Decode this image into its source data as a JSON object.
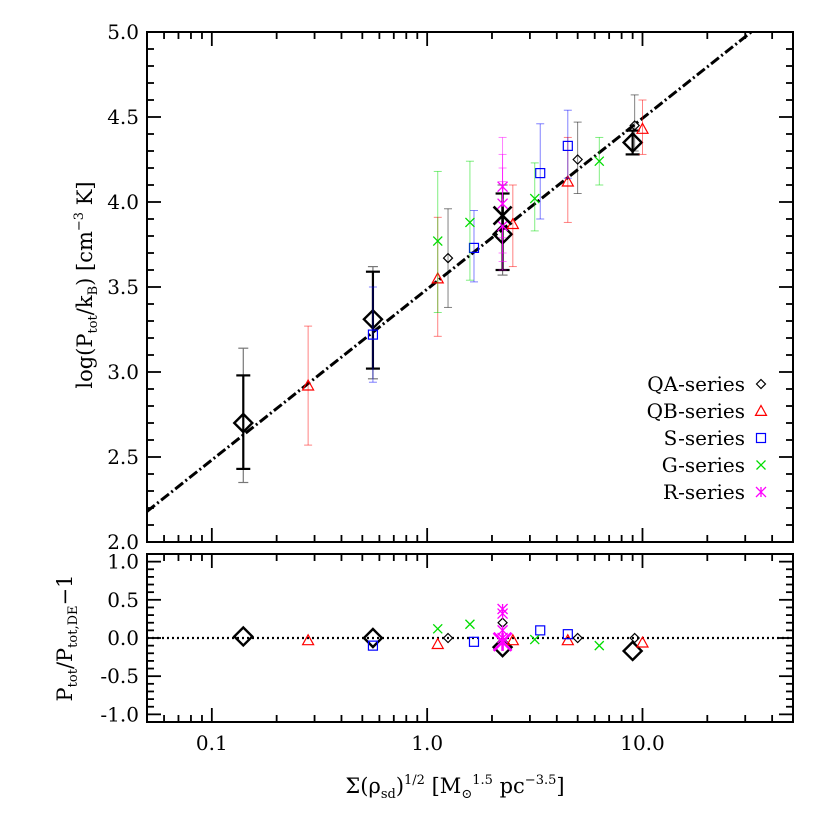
{
  "chart_data": [
    {
      "type": "scatter",
      "panel": "top",
      "xscale": "log",
      "xlim": [
        0.05,
        50
      ],
      "ylim": [
        2.0,
        5.0
      ],
      "yticks": [
        2.0,
        2.5,
        3.0,
        3.5,
        4.0,
        4.5,
        5.0
      ],
      "ytick_labels": [
        "2.0",
        "2.5",
        "3.0",
        "3.5",
        "4.0",
        "4.5",
        "5.0"
      ],
      "ylabel": {
        "main": "log(P",
        "sub1": "tot",
        "mid": "/k",
        "sub2": "B",
        "end": ") [cm",
        "sup": "−3",
        "tail": " K]"
      },
      "legend_position": "lower-right",
      "fit_line": {
        "style": "dash-dot",
        "color": "#000000",
        "x": [
          0.05,
          32
        ],
        "y": [
          2.18,
          5.0
        ]
      },
      "series": [
        {
          "name": "QA-series",
          "marker": "diamond",
          "color": "#000000",
          "points": [
            {
              "x": 1.25,
              "y": 3.67,
              "lo": 3.38,
              "hi": 3.96
            },
            {
              "x": 5.0,
              "y": 4.25,
              "lo": 4.05,
              "hi": 4.47
            },
            {
              "x": 9.2,
              "y": 4.45,
              "lo": 4.3,
              "hi": 4.63
            }
          ]
        },
        {
          "name": "QA-series-large",
          "marker": "diamond-large",
          "color": "#000000",
          "points": [
            {
              "x": 0.14,
              "y": 2.7,
              "lo": 2.43,
              "hi": 2.98,
              "lo_outer": 2.35,
              "hi_outer": 3.14
            },
            {
              "x": 0.56,
              "y": 3.31,
              "lo": 3.02,
              "hi": 3.59,
              "lo_outer": 2.96,
              "hi_outer": 3.62
            },
            {
              "x": 2.24,
              "y": 3.81,
              "lo": 3.6,
              "hi": 4.05,
              "lo_outer": 3.57,
              "hi_outer": 4.1
            },
            {
              "x": 9.0,
              "y": 4.35,
              "lo": 4.28,
              "hi": 4.42
            }
          ]
        },
        {
          "name": "QB-series",
          "marker": "triangle",
          "color": "#ff0000",
          "points": [
            {
              "x": 0.28,
              "y": 2.92,
              "lo": 2.57,
              "hi": 3.27
            },
            {
              "x": 1.12,
              "y": 3.55,
              "lo": 3.21,
              "hi": 3.91
            },
            {
              "x": 2.5,
              "y": 3.87,
              "lo": 3.62,
              "hi": 4.1
            },
            {
              "x": 4.5,
              "y": 4.12,
              "lo": 3.88,
              "hi": 4.38
            },
            {
              "x": 10.0,
              "y": 4.43,
              "lo": 4.28,
              "hi": 4.6
            }
          ]
        },
        {
          "name": "S-series",
          "marker": "square",
          "color": "#0000ff",
          "points": [
            {
              "x": 0.56,
              "y": 3.22,
              "lo": 2.94,
              "hi": 3.5
            },
            {
              "x": 1.65,
              "y": 3.73,
              "lo": 3.53,
              "hi": 3.95
            },
            {
              "x": 3.35,
              "y": 4.17,
              "lo": 3.9,
              "hi": 4.46
            },
            {
              "x": 4.5,
              "y": 4.33,
              "lo": 4.14,
              "hi": 4.54
            }
          ]
        },
        {
          "name": "G-series",
          "marker": "x",
          "color": "#00dd00",
          "points": [
            {
              "x": 1.12,
              "y": 3.77,
              "lo": 3.35,
              "hi": 4.18
            },
            {
              "x": 1.58,
              "y": 3.88,
              "lo": 3.54,
              "hi": 4.24
            },
            {
              "x": 3.16,
              "y": 4.02,
              "lo": 3.83,
              "hi": 4.23
            },
            {
              "x": 6.3,
              "y": 4.24,
              "lo": 4.1,
              "hi": 4.38
            }
          ]
        },
        {
          "name": "R-series",
          "marker": "asterisk",
          "color": "#ff00ff",
          "points": [
            {
              "x": 2.24,
              "y": 3.92,
              "lo": 3.65,
              "hi": 4.2
            },
            {
              "x": 2.24,
              "y": 3.99,
              "lo": 3.7,
              "hi": 4.28
            },
            {
              "x": 2.24,
              "y": 4.09,
              "lo": 3.79,
              "hi": 4.38
            },
            {
              "x": 2.24,
              "y": 3.86,
              "lo": 3.6,
              "hi": 4.12
            }
          ]
        },
        {
          "name": "R-series-large",
          "marker": "asterisk-large",
          "color": "#000000",
          "points": [
            {
              "x": 2.24,
              "y": 3.92
            }
          ]
        }
      ],
      "legend": [
        {
          "label": "QA-series",
          "marker": "diamond",
          "color": "#000000"
        },
        {
          "label": "QB-series",
          "marker": "triangle",
          "color": "#ff0000"
        },
        {
          "label": "S-series",
          "marker": "square",
          "color": "#0000ff"
        },
        {
          "label": "G-series",
          "marker": "x",
          "color": "#00dd00"
        },
        {
          "label": "R-series",
          "marker": "asterisk",
          "color": "#ff00ff"
        }
      ]
    },
    {
      "type": "scatter",
      "panel": "bottom",
      "xscale": "log",
      "xlim": [
        0.05,
        50
      ],
      "ylim": [
        -1.1,
        1.1
      ],
      "yticks": [
        -1.0,
        -0.5,
        0.0,
        0.5,
        1.0
      ],
      "ytick_labels": [
        "-1.0",
        "-0.5",
        "0.0",
        "0.5",
        "1.0"
      ],
      "xticks": [
        0.1,
        1.0,
        10.0
      ],
      "xtick_labels": [
        "0.1",
        "1.0",
        "10.0"
      ],
      "ylabel": {
        "main": "P",
        "sub1": "tot",
        "mid": "/P",
        "sub2": "tot,DE",
        "end": "−1"
      },
      "xlabel": {
        "main": "Σ(ρ",
        "sub": "sd",
        "mid": ")",
        "sup1": "1/2",
        "end": " [M",
        "sub2": "⊙",
        "sup2": "1.5",
        "mid2": " pc",
        "sup3": "−3.5",
        "tail": "]"
      },
      "reference_line": {
        "y": 0.0,
        "style": "dotted"
      },
      "series": [
        {
          "name": "QA-series",
          "marker": "diamond",
          "color": "#000000",
          "points": [
            {
              "x": 1.25,
              "y": 0.0
            },
            {
              "x": 5.0,
              "y": 0.0
            },
            {
              "x": 9.2,
              "y": 0.0
            },
            {
              "x": 2.24,
              "y": 0.2
            }
          ]
        },
        {
          "name": "QA-series-large",
          "marker": "diamond-large",
          "color": "#000000",
          "points": [
            {
              "x": 0.14,
              "y": 0.02
            },
            {
              "x": 0.56,
              "y": 0.0
            },
            {
              "x": 2.24,
              "y": -0.12
            },
            {
              "x": 9.0,
              "y": -0.17
            }
          ]
        },
        {
          "name": "QB-series",
          "marker": "triangle",
          "color": "#ff0000",
          "points": [
            {
              "x": 0.28,
              "y": -0.03
            },
            {
              "x": 1.12,
              "y": -0.08
            },
            {
              "x": 2.5,
              "y": -0.03
            },
            {
              "x": 4.5,
              "y": -0.03
            },
            {
              "x": 10.0,
              "y": -0.06
            }
          ]
        },
        {
          "name": "S-series",
          "marker": "square",
          "color": "#0000ff",
          "points": [
            {
              "x": 0.56,
              "y": -0.1
            },
            {
              "x": 1.65,
              "y": -0.05
            },
            {
              "x": 3.35,
              "y": 0.1
            },
            {
              "x": 4.5,
              "y": 0.05
            }
          ]
        },
        {
          "name": "G-series",
          "marker": "x",
          "color": "#00dd00",
          "points": [
            {
              "x": 1.12,
              "y": 0.12
            },
            {
              "x": 1.58,
              "y": 0.18
            },
            {
              "x": 3.16,
              "y": -0.02
            },
            {
              "x": 6.3,
              "y": -0.1
            }
          ]
        },
        {
          "name": "R-series",
          "marker": "asterisk",
          "color": "#ff00ff",
          "points": [
            {
              "x": 2.24,
              "y": 0.0
            },
            {
              "x": 2.24,
              "y": 0.1
            },
            {
              "x": 2.24,
              "y": 0.32
            },
            {
              "x": 2.24,
              "y": 0.38
            },
            {
              "x": 2.24,
              "y": -0.05
            }
          ]
        },
        {
          "name": "R-series-large",
          "marker": "asterisk-large",
          "color": "#ff00ff",
          "points": [
            {
              "x": 2.24,
              "y": -0.05
            }
          ]
        }
      ]
    }
  ]
}
